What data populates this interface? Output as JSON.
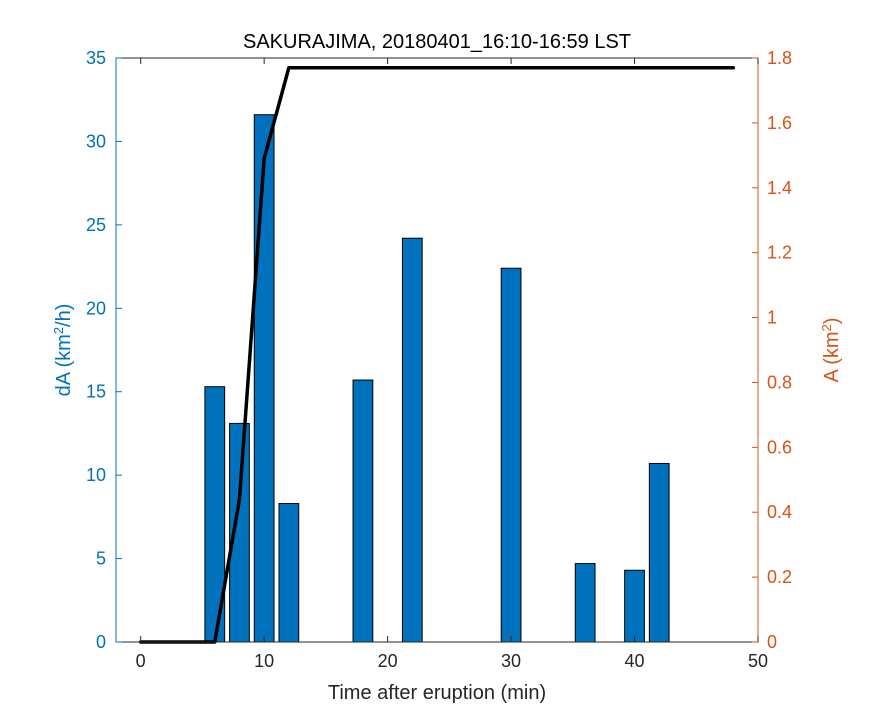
{
  "chart_data": {
    "type": "bar",
    "title": "SAKURAJIMA, 20180401_16:10-16:59 LST",
    "xlabel": "Time after eruption (min)",
    "xlim": [
      -2,
      50
    ],
    "xticks": [
      0,
      10,
      20,
      30,
      40,
      50
    ],
    "grid": false,
    "left_axis": {
      "label_text": "dA (km",
      "label_sup": "2",
      "label_tail": "/h)",
      "ylim": [
        0,
        35
      ],
      "ticks": [
        0,
        5,
        10,
        15,
        20,
        25,
        30,
        35
      ],
      "color": "#0072BD"
    },
    "right_axis": {
      "label_text": "A (km",
      "label_sup": "2",
      "label_tail": ")",
      "ylim": [
        0,
        1.8
      ],
      "ticks": [
        0,
        0.2,
        0.4,
        0.6,
        0.8,
        1,
        1.2,
        1.4,
        1.6,
        1.8
      ],
      "color": "#D95319"
    },
    "bars": {
      "axis": "left",
      "color": "#0072BD",
      "width": 1.6,
      "x": [
        6,
        8,
        10,
        12,
        18,
        22,
        30,
        36,
        40,
        42
      ],
      "values": [
        15.3,
        13.1,
        31.6,
        8.3,
        15.7,
        24.2,
        22.4,
        4.7,
        4.3,
        10.7
      ]
    },
    "line": {
      "axis": "right",
      "color": "#000000",
      "x": [
        0,
        6,
        8,
        10,
        12,
        48
      ],
      "values": [
        0,
        0,
        0.44,
        1.49,
        1.77,
        1.77
      ]
    }
  }
}
